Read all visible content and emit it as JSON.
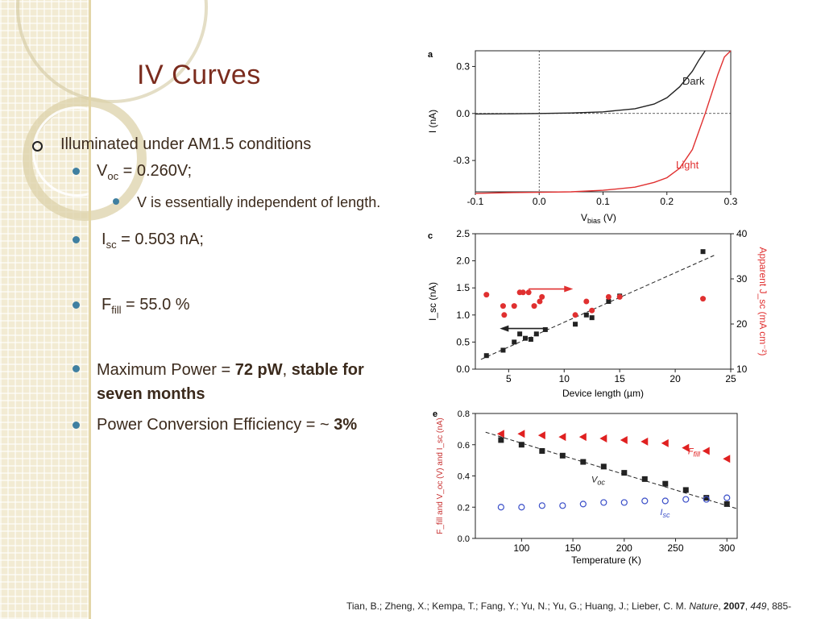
{
  "slide": {
    "title": "IV Curves",
    "bullets": {
      "b1": "Illuminated under AM1.5 conditions",
      "voc_label": "V",
      "voc_sub": "oc",
      "voc_value": " = 0.260V;",
      "voc_note": "V is essentially independent of length.",
      "isc_label": "I",
      "isc_sub": "sc",
      "isc_value": " = 0.503 nA;",
      "ff_label": "F",
      "ff_sub": "fill",
      "ff_value": " = 55.0 %",
      "pmax_pre": "Maximum Power = ",
      "pmax_value": "72 pW",
      "pmax_comma": ", ",
      "pmax_stable": "stable for seven months",
      "pce_pre": "Power Conversion Efficiency = ~ ",
      "pce_value": "3%"
    },
    "citation": {
      "authors": "Tian, B.; Zheng, X.; Kempa, T.; Fang, Y.; Yu, N.; Yu, G.; Huang, J.; Lieber, C. M. ",
      "journal": "Nature",
      "sep1": ", ",
      "year": "2007",
      "sep2": ", ",
      "volume": "449",
      "pages": ", 885-"
    }
  },
  "chart_data": [
    {
      "panel": "a",
      "type": "line",
      "xlabel": "V_bias (V)",
      "ylabel": "I (nA)",
      "xlim": [
        -0.1,
        0.3
      ],
      "ylim": [
        -0.5,
        0.4
      ],
      "xticks": [
        "-0.1",
        "0.0",
        "0.1",
        "0.2",
        "0.3"
      ],
      "xtick_values": [
        -0.1,
        0.0,
        0.1,
        0.2,
        0.3
      ],
      "yticks": [
        "0.3",
        "0.0",
        "-0.3"
      ],
      "ytick_values": [
        0.3,
        0.0,
        -0.3
      ],
      "series": [
        {
          "name": "Dark",
          "color": "#222222",
          "x": [
            -0.1,
            -0.05,
            0.0,
            0.05,
            0.1,
            0.15,
            0.18,
            0.2,
            0.22,
            0.24,
            0.25,
            0.26
          ],
          "y": [
            -0.003,
            -0.002,
            0.0,
            0.003,
            0.01,
            0.03,
            0.06,
            0.1,
            0.17,
            0.27,
            0.34,
            0.4
          ]
        },
        {
          "name": "Light",
          "color": "#e03030",
          "x": [
            -0.1,
            -0.05,
            0.0,
            0.05,
            0.1,
            0.15,
            0.18,
            0.2,
            0.22,
            0.24,
            0.26,
            0.28,
            0.29,
            0.3
          ],
          "y": [
            -0.51,
            -0.505,
            -0.503,
            -0.5,
            -0.49,
            -0.47,
            -0.44,
            -0.41,
            -0.35,
            -0.23,
            0.0,
            0.25,
            0.36,
            0.4
          ]
        }
      ]
    },
    {
      "panel": "c",
      "type": "scatter",
      "xlabel": "Device length (µm)",
      "ylabel": "I_sc (nA)",
      "ylabel_right": "Apparent J_sc (mA cm⁻²)",
      "xlim": [
        2,
        25
      ],
      "ylim": [
        0,
        2.5
      ],
      "ylim_right": [
        10,
        40
      ],
      "xticks": [
        "5",
        "10",
        "15",
        "20",
        "25"
      ],
      "xtick_values": [
        5,
        10,
        15,
        20,
        25
      ],
      "yticks": [
        "0.0",
        "0.5",
        "1.0",
        "1.5",
        "2.0",
        "2.5"
      ],
      "ytick_values": [
        0,
        0.5,
        1.0,
        1.5,
        2.0,
        2.5
      ],
      "yticks_right": [
        "10",
        "20",
        "30",
        "40"
      ],
      "ytick_values_right": [
        10,
        20,
        30,
        40
      ],
      "series": [
        {
          "name": "Isc",
          "color": "#222222",
          "marker": "square",
          "x": [
            3,
            4.5,
            5.5,
            6,
            6.5,
            7,
            7.5,
            8.3,
            11,
            12,
            12.5,
            14,
            15,
            22.5
          ],
          "y": [
            0.25,
            0.35,
            0.5,
            0.65,
            0.57,
            0.55,
            0.65,
            0.73,
            0.83,
            1.0,
            0.95,
            1.25,
            1.35,
            2.17
          ]
        },
        {
          "name": "Jsc",
          "color": "#e03030",
          "marker": "circle",
          "axis": "right",
          "x": [
            3,
            4.5,
            4.6,
            5.5,
            6,
            6.3,
            6.8,
            7.3,
            7.8,
            8,
            11,
            12,
            12.5,
            14,
            15,
            22.5
          ],
          "y": [
            26.5,
            24,
            22,
            24,
            27,
            27,
            27,
            24,
            25,
            26,
            22,
            25,
            23,
            26,
            26,
            25.6
          ]
        }
      ],
      "trend": {
        "x": [
          2.5,
          23.5
        ],
        "y": [
          0.18,
          2.1
        ]
      }
    },
    {
      "panel": "e",
      "type": "scatter",
      "xlabel": "Temperature (K)",
      "ylabel": "F_fill and V_oc (V) and I_sc (nA)",
      "xlim": [
        55,
        310
      ],
      "ylim": [
        0,
        0.8
      ],
      "xticks": [
        "100",
        "150",
        "200",
        "250",
        "300"
      ],
      "xtick_values": [
        100,
        150,
        200,
        250,
        300
      ],
      "yticks": [
        "0.0",
        "0.2",
        "0.4",
        "0.6",
        "0.8"
      ],
      "ytick_values": [
        0,
        0.2,
        0.4,
        0.6,
        0.8
      ],
      "series": [
        {
          "name": "F_fill",
          "label": "F",
          "label_sub": "fill",
          "color": "#e02020",
          "marker": "triangle-left",
          "x": [
            80,
            100,
            120,
            140,
            160,
            180,
            200,
            220,
            240,
            260,
            280,
            300
          ],
          "y": [
            0.67,
            0.67,
            0.66,
            0.65,
            0.65,
            0.64,
            0.63,
            0.62,
            0.61,
            0.58,
            0.56,
            0.51
          ]
        },
        {
          "name": "V_oc",
          "label": "V",
          "label_sub": "oc",
          "color": "#222222",
          "marker": "square",
          "x": [
            80,
            100,
            120,
            140,
            160,
            180,
            200,
            220,
            240,
            260,
            280,
            300
          ],
          "y": [
            0.63,
            0.6,
            0.56,
            0.53,
            0.49,
            0.46,
            0.42,
            0.38,
            0.35,
            0.31,
            0.26,
            0.22
          ]
        },
        {
          "name": "I_sc",
          "label": "I",
          "label_sub": "sc",
          "color": "#3a4ec8",
          "marker": "open-circle",
          "x": [
            80,
            100,
            120,
            140,
            160,
            180,
            200,
            220,
            240,
            260,
            280,
            300
          ],
          "y": [
            0.2,
            0.2,
            0.21,
            0.21,
            0.22,
            0.23,
            0.23,
            0.24,
            0.24,
            0.25,
            0.25,
            0.26
          ]
        }
      ],
      "trend": {
        "x": [
          65,
          310
        ],
        "y": [
          0.68,
          0.19
        ]
      }
    }
  ]
}
